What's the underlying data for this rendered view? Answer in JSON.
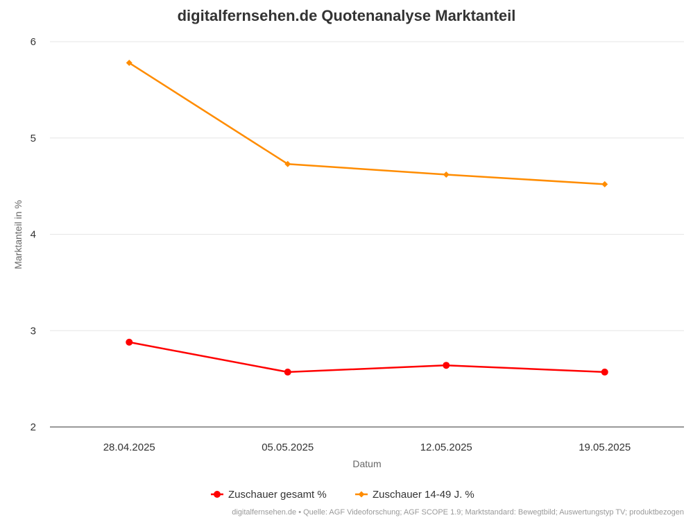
{
  "chart_data": {
    "type": "line",
    "title": "digitalfernsehen.de Quotenanalyse Marktanteil",
    "xlabel": "Datum",
    "ylabel": "Marktanteil in %",
    "categories": [
      "28.04.2025",
      "05.05.2025",
      "12.05.2025",
      "19.05.2025"
    ],
    "ylim": [
      2,
      6
    ],
    "yticks": [
      2,
      3,
      4,
      5,
      6
    ],
    "grid": true,
    "legend": "bottom-center",
    "series": [
      {
        "name": "Zuschauer gesamt %",
        "values": [
          2.88,
          2.57,
          2.64,
          2.57
        ],
        "color": "#ff0000",
        "marker": "circle"
      },
      {
        "name": "Zuschauer 14-49 J. %",
        "values": [
          5.78,
          4.73,
          4.62,
          4.52
        ],
        "color": "#ff8c00",
        "marker": "diamond"
      }
    ],
    "credits": "digitalfernsehen.de • Quelle: AGF Videoforschung; AGF SCOPE 1.9; Marktstandard: Bewegtbild; Auswertungstyp TV; produktbezogen"
  }
}
